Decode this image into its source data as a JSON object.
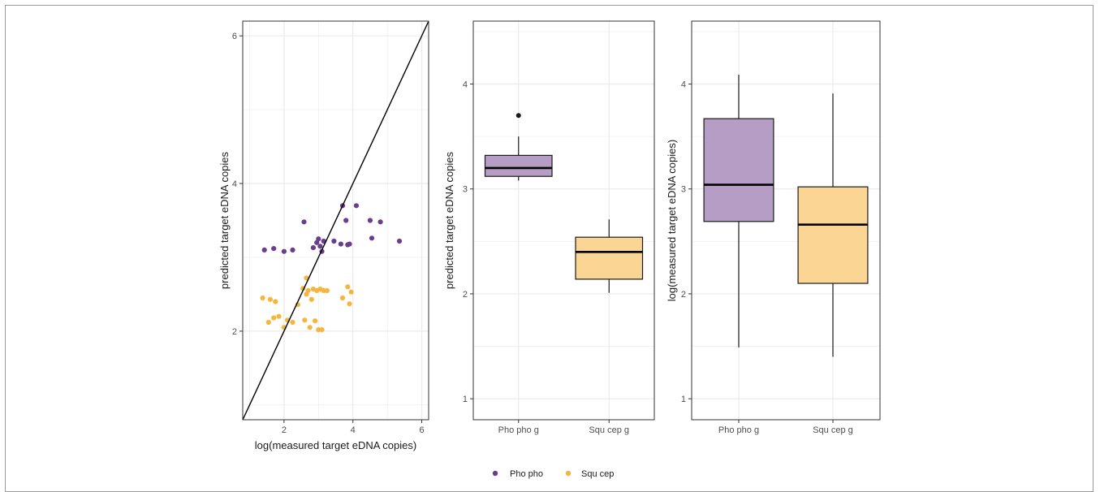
{
  "colors": {
    "Pho pho": "#6a3d8f",
    "Squ cep": "#f4b63f",
    "box_Pho": "#b59dc6",
    "box_Squ": "#fbd594",
    "grid": "#ebebeb",
    "panel_border": "#333333"
  },
  "legend": {
    "position": "bottom",
    "items": [
      {
        "label": "Pho pho",
        "color": "#6a3d8f"
      },
      {
        "label": "Squ cep",
        "color": "#f4b63f"
      }
    ]
  },
  "chart_data": [
    {
      "type": "scatter",
      "xlabel": "log(measured target eDNA copies)",
      "ylabel": "predicted target eDNA copies",
      "xlim": [
        0.8,
        6.2
      ],
      "ylim": [
        0.8,
        6.2
      ],
      "xticks": [
        "2",
        "4",
        "6"
      ],
      "yticks": [
        "2",
        "4",
        "6"
      ],
      "grid": true,
      "reference_line": "y = x",
      "series": [
        {
          "name": "Pho pho",
          "x": [
            1.43,
            1.7,
            2.0,
            2.25,
            2.58,
            2.85,
            2.95,
            3.0,
            3.05,
            3.15,
            3.1,
            3.45,
            3.65,
            3.7,
            3.8,
            3.85,
            3.9,
            4.1,
            4.5,
            4.55,
            4.8,
            5.35
          ],
          "y": [
            3.1,
            3.12,
            3.08,
            3.1,
            3.48,
            3.13,
            3.2,
            3.25,
            3.15,
            3.22,
            3.08,
            3.22,
            3.18,
            3.7,
            3.5,
            3.17,
            3.18,
            3.7,
            3.5,
            3.26,
            3.48,
            3.22
          ]
        },
        {
          "name": "Squ cep",
          "x": [
            1.38,
            1.55,
            1.6,
            1.75,
            1.85,
            1.7,
            2.0,
            2.1,
            2.25,
            2.4,
            2.55,
            2.6,
            2.65,
            2.7,
            2.75,
            2.8,
            2.85,
            2.9,
            2.95,
            3.0,
            3.05,
            3.1,
            3.15,
            3.25,
            3.7,
            3.85,
            3.9,
            3.95,
            2.65
          ],
          "y": [
            2.45,
            2.12,
            2.43,
            2.4,
            2.2,
            2.18,
            2.05,
            2.15,
            2.12,
            2.36,
            2.58,
            2.15,
            2.72,
            2.55,
            2.05,
            2.43,
            2.57,
            2.14,
            2.55,
            2.02,
            2.57,
            2.02,
            2.55,
            2.55,
            2.45,
            2.6,
            2.37,
            2.53,
            2.5
          ]
        }
      ]
    },
    {
      "type": "boxplot",
      "xlabel": "",
      "ylabel": "predicted target eDNA copies",
      "categories": [
        "Pho pho g",
        "Squ cep g"
      ],
      "ylim": [
        0.8,
        4.6
      ],
      "yticks": [
        "1",
        "2",
        "3",
        "4"
      ],
      "grid": true,
      "boxes": [
        {
          "name": "Pho pho g",
          "whisker_low": 3.08,
          "q1": 3.12,
          "median": 3.2,
          "q3": 3.32,
          "whisker_high": 3.5,
          "outliers": [
            3.7
          ]
        },
        {
          "name": "Squ cep g",
          "whisker_low": 2.01,
          "q1": 2.14,
          "median": 2.4,
          "q3": 2.54,
          "whisker_high": 2.71,
          "outliers": []
        }
      ]
    },
    {
      "type": "boxplot",
      "xlabel": "",
      "ylabel": "log(measured target eDNA copies)",
      "categories": [
        "Pho pho g",
        "Squ cep g"
      ],
      "ylim": [
        0.8,
        4.6
      ],
      "yticks": [
        "1",
        "2",
        "3",
        "4"
      ],
      "grid": true,
      "boxes": [
        {
          "name": "Pho pho g",
          "whisker_low": 1.49,
          "q1": 2.69,
          "median": 3.04,
          "q3": 3.67,
          "whisker_high": 4.09,
          "outliers": []
        },
        {
          "name": "Squ cep g",
          "whisker_low": 1.4,
          "q1": 2.1,
          "median": 2.66,
          "q3": 3.02,
          "whisker_high": 3.91,
          "outliers": []
        }
      ]
    }
  ]
}
